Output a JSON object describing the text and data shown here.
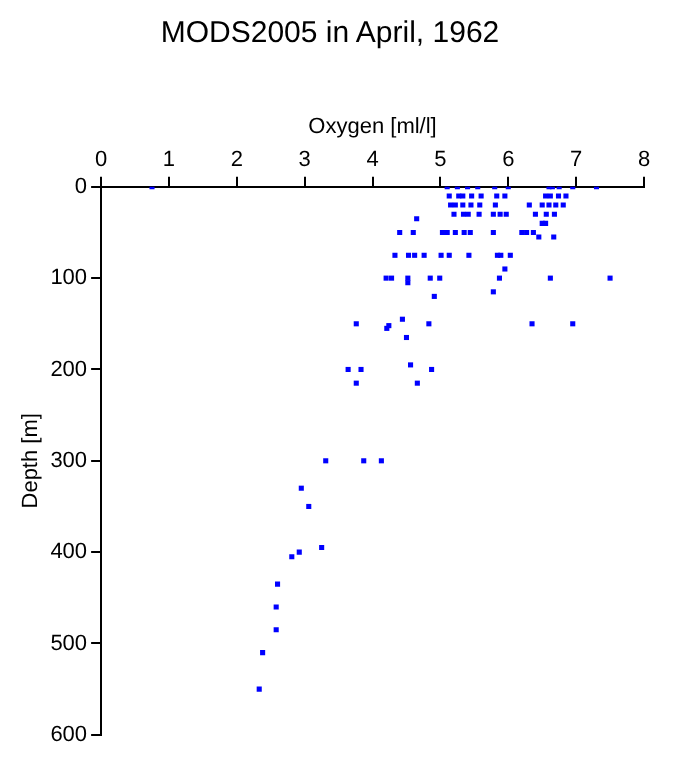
{
  "chart_data": {
    "type": "scatter",
    "title": "MODS2005 in April, 1962",
    "xlabel": "Oxygen [ml/l]",
    "ylabel": "Depth [m]",
    "xlim": [
      0,
      8
    ],
    "xticks": [
      0,
      1,
      2,
      3,
      4,
      5,
      6,
      7,
      8
    ],
    "ylim": [
      600,
      0
    ],
    "yticks": [
      0,
      100,
      200,
      300,
      400,
      500,
      600
    ],
    "grid": false,
    "legend": false,
    "marker": "square",
    "series": [
      {
        "color": "#0000ff",
        "x": [
          0.75,
          5.1,
          5.25,
          5.4,
          5.55,
          5.8,
          6.0,
          6.6,
          6.65,
          6.75,
          6.95,
          7.3,
          5.13,
          5.27,
          5.33,
          5.46,
          5.6,
          5.83,
          5.95,
          6.55,
          6.62,
          6.74,
          6.85,
          5.15,
          5.22,
          5.33,
          5.45,
          5.58,
          5.81,
          6.31,
          6.5,
          6.6,
          6.7,
          6.81,
          4.65,
          5.2,
          5.34,
          5.41,
          5.57,
          5.78,
          5.88,
          5.97,
          6.4,
          6.56,
          6.68,
          6.5,
          6.55,
          4.4,
          4.6,
          5.03,
          5.1,
          5.22,
          5.35,
          5.44,
          5.78,
          6.2,
          6.27,
          6.37,
          6.45,
          6.67,
          4.33,
          4.53,
          4.62,
          4.76,
          5.01,
          5.13,
          5.42,
          5.84,
          5.89,
          6.03,
          5.95,
          4.2,
          4.28,
          4.52,
          4.85,
          4.99,
          5.87,
          6.62,
          7.5,
          4.52,
          5.78,
          4.91,
          4.44,
          6.35,
          6.95,
          3.76,
          4.24,
          4.21,
          4.83,
          4.5,
          4.56,
          4.87,
          3.64,
          3.83,
          3.76,
          4.66,
          3.31,
          3.87,
          4.13,
          2.95,
          3.06,
          3.25,
          2.92,
          2.81,
          2.6,
          2.58,
          2.58,
          2.38,
          2.33
        ],
        "values": [
          0,
          0,
          0,
          0,
          0,
          0,
          0,
          0,
          0,
          0,
          0,
          0,
          10,
          10,
          10,
          10,
          10,
          10,
          10,
          10,
          10,
          10,
          10,
          20,
          20,
          20,
          20,
          20,
          20,
          20,
          20,
          20,
          20,
          20,
          35,
          30,
          30,
          30,
          30,
          30,
          30,
          30,
          30,
          30,
          30,
          40,
          40,
          50,
          50,
          50,
          50,
          50,
          50,
          50,
          50,
          50,
          50,
          50,
          55,
          55,
          75,
          75,
          75,
          75,
          75,
          75,
          75,
          75,
          75,
          75,
          90,
          100,
          100,
          100,
          100,
          100,
          100,
          100,
          100,
          105,
          115,
          120,
          145,
          150,
          150,
          150,
          152,
          155,
          150,
          165,
          195,
          200,
          200,
          200,
          215,
          215,
          300,
          300,
          300,
          330,
          350,
          395,
          400,
          405,
          435,
          460,
          485,
          510,
          550
        ]
      }
    ]
  }
}
